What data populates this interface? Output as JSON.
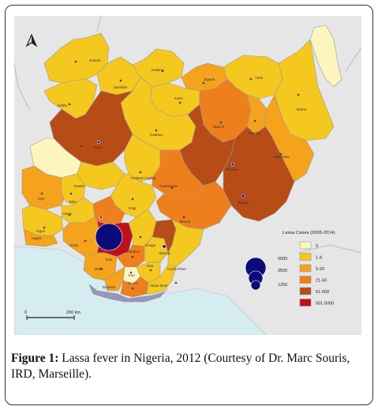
{
  "caption": {
    "label": "Figure 1:",
    "text": " Lassa fever in Nigeria, 2012 (Courtesy of Dr. Marc Souris, IRD, Marseille)."
  },
  "map": {
    "north_symbol": "north-arrow-icon",
    "scale_bar": {
      "start": "0",
      "end": "200 km"
    },
    "legend": {
      "title": "Lassa Cases (2005-2014)",
      "classes": [
        {
          "label": "0",
          "color": "#fcf6be"
        },
        {
          "label": "1-4",
          "color": "#f5c81f"
        },
        {
          "label": "5-20",
          "color": "#f5a21d"
        },
        {
          "label": "21-50",
          "color": "#ee7f1c"
        },
        {
          "label": "51-500",
          "color": "#b84c17"
        },
        {
          "label": "501-5000",
          "color": "#c0101b"
        }
      ],
      "proportional_symbols": [
        {
          "label": "5000"
        },
        {
          "label": "2500"
        },
        {
          "label": "1250"
        }
      ],
      "symbol_color": "#0b0b7a"
    },
    "states": [
      "Sokoto",
      "Katsina",
      "Zamfara",
      "Jigawa",
      "Yobe",
      "Borno",
      "Kano",
      "Kebbi",
      "Bauchi",
      "Kaduna",
      "Niger",
      "Gombe",
      "Adamawa",
      "Plateau",
      "Kwara",
      "Federal Capital",
      "Nassarawa",
      "Taraba",
      "Oyo",
      "Ekiti",
      "Kogi",
      "Benue",
      "Osun",
      "Ogun",
      "Lagos",
      "Edo",
      "Ondo",
      "Anambra",
      "Enugu",
      "Ebonyi",
      "Delta",
      "Imo",
      "Abia",
      "Cross River",
      "Bayelsa",
      "Rivers",
      "Akwa Ibom"
    ],
    "colors": {
      "background": "#e6e6e6",
      "sea": "#d5ecf0",
      "border": "#9a9a9a",
      "niger_delta": "#9a96b8"
    }
  }
}
